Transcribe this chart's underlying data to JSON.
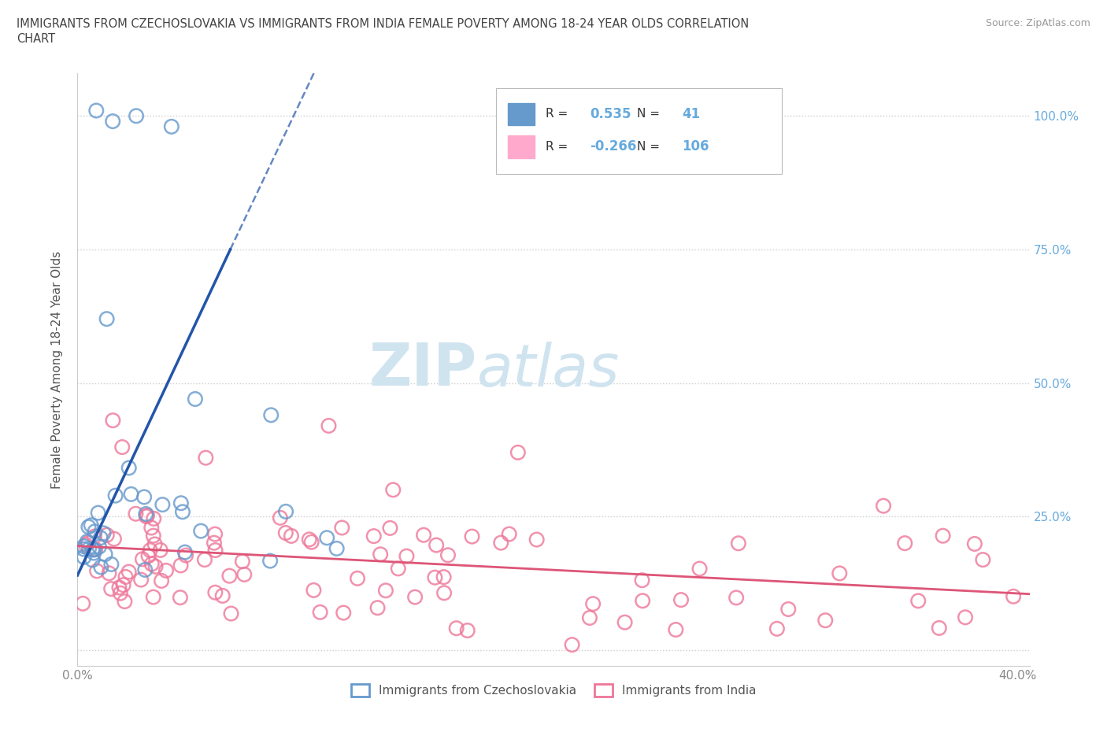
{
  "title_line1": "IMMIGRANTS FROM CZECHOSLOVAKIA VS IMMIGRANTS FROM INDIA FEMALE POVERTY AMONG 18-24 YEAR OLDS CORRELATION",
  "title_line2": "CHART",
  "source_text": "Source: ZipAtlas.com",
  "ylabel": "Female Poverty Among 18-24 Year Olds",
  "xlim": [
    0.0,
    0.405
  ],
  "ylim": [
    -0.03,
    1.08
  ],
  "color1": "#6699cc",
  "color1_line": "#2255aa",
  "color2": "#ee7799",
  "color2_line": "#dd5577",
  "legend_label1": "Immigrants from Czechoslovakia",
  "legend_label2": "Immigrants from India",
  "r1": 0.535,
  "n1": 41,
  "r2": -0.266,
  "n2": 106,
  "trend1_x0": 0.0,
  "trend1_y0": 0.14,
  "trend1_x1": 0.065,
  "trend1_y1": 0.75,
  "trend1_xdash0": 0.065,
  "trend1_ydash0": 0.75,
  "trend1_xdash1": 0.135,
  "trend1_ydash1": 1.4,
  "trend2_x0": 0.0,
  "trend2_y0": 0.195,
  "trend2_x1": 0.405,
  "trend2_y1": 0.105,
  "watermark_color": "#d0e4f0",
  "grid_color": "#cccccc",
  "title_color": "#444444",
  "tick_color": "#888888",
  "right_tick_color": "#66aadd"
}
